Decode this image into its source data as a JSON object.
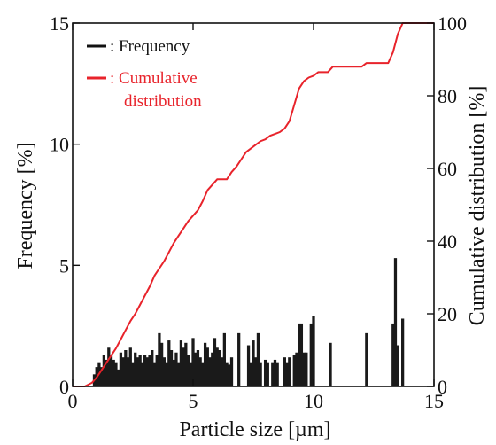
{
  "chart_data": {
    "type": "bar",
    "xlabel": "Particle size [µm]",
    "ylabel": "Frequency  [%]",
    "y2label": "Cumulative distribution [%]",
    "xlim": [
      0,
      15
    ],
    "ylim": [
      0,
      15
    ],
    "y2lim": [
      0,
      100
    ],
    "xticks": [
      "0",
      "5",
      "10",
      "15"
    ],
    "yticks": [
      "0",
      "5",
      "10",
      "15"
    ],
    "y2ticks": [
      "0",
      "20",
      "40",
      "60",
      "80",
      "100"
    ],
    "legend_position": "top-left",
    "series": [
      {
        "name": ": Frequency",
        "type": "bar",
        "color": "#1a1a1a",
        "bar_width": 0.12,
        "x": [
          0.9,
          1.0,
          1.1,
          1.2,
          1.3,
          1.4,
          1.5,
          1.6,
          1.7,
          1.8,
          1.9,
          2.0,
          2.1,
          2.2,
          2.3,
          2.4,
          2.5,
          2.6,
          2.7,
          2.8,
          2.9,
          3.0,
          3.1,
          3.2,
          3.3,
          3.4,
          3.5,
          3.6,
          3.7,
          3.8,
          3.9,
          4.0,
          4.1,
          4.2,
          4.3,
          4.4,
          4.5,
          4.6,
          4.7,
          4.8,
          4.9,
          5.0,
          5.1,
          5.2,
          5.3,
          5.4,
          5.5,
          5.6,
          5.7,
          5.8,
          5.9,
          6.0,
          6.1,
          6.2,
          6.3,
          6.4,
          6.5,
          6.6,
          6.9,
          7.3,
          7.4,
          7.5,
          7.6,
          7.7,
          7.8,
          8.0,
          8.1,
          8.3,
          8.4,
          8.5,
          8.8,
          8.9,
          9.0,
          9.2,
          9.3,
          9.4,
          9.5,
          9.6,
          9.7,
          9.9,
          10.0,
          10.7,
          12.2,
          13.3,
          13.4,
          13.5,
          13.7
        ],
        "values": [
          0.5,
          0.8,
          1.0,
          0.8,
          1.3,
          1.1,
          1.6,
          1.3,
          1.1,
          1.0,
          0.7,
          1.4,
          1.2,
          1.5,
          1.2,
          1.6,
          1.0,
          1.4,
          1.2,
          1.3,
          1.0,
          1.3,
          1.2,
          1.3,
          1.5,
          1.0,
          1.3,
          2.2,
          1.8,
          1.2,
          1.0,
          1.9,
          1.5,
          1.1,
          1.4,
          1.0,
          1.9,
          1.6,
          1.8,
          1.3,
          1.0,
          2.0,
          1.4,
          1.5,
          1.2,
          1.0,
          1.8,
          1.6,
          1.2,
          1.4,
          2.0,
          1.6,
          1.5,
          1.2,
          2.2,
          1.0,
          0.9,
          1.2,
          2.2,
          1.7,
          1.0,
          1.9,
          1.2,
          2.2,
          1.0,
          1.1,
          1.0,
          1.0,
          1.1,
          1.0,
          1.2,
          1.0,
          1.2,
          1.3,
          1.4,
          2.6,
          2.6,
          1.4,
          1.4,
          2.6,
          2.9,
          1.8,
          2.2,
          2.6,
          5.3,
          1.7,
          2.8
        ]
      },
      {
        "name": ": Cumulative",
        "name_line2": "distribution",
        "type": "line",
        "axis": "right",
        "color": "#e8232b",
        "x": [
          0.0,
          0.5,
          0.8,
          1.0,
          1.2,
          1.4,
          1.6,
          1.8,
          2.0,
          2.2,
          2.4,
          2.6,
          2.8,
          3.0,
          3.2,
          3.4,
          3.6,
          3.8,
          4.0,
          4.2,
          4.4,
          4.6,
          4.8,
          5.0,
          5.2,
          5.4,
          5.6,
          5.8,
          6.0,
          6.2,
          6.4,
          6.6,
          6.8,
          7.0,
          7.2,
          7.4,
          7.6,
          7.8,
          8.0,
          8.2,
          8.4,
          8.6,
          8.8,
          9.0,
          9.2,
          9.4,
          9.6,
          9.8,
          10.0,
          10.2,
          10.6,
          10.8,
          12.0,
          12.2,
          13.1,
          13.3,
          13.5,
          13.7,
          15.0
        ],
        "values": [
          0.0,
          0.0,
          1.0,
          2.5,
          4.5,
          6.5,
          8.5,
          10.5,
          13.0,
          15.5,
          18.0,
          20.0,
          22.5,
          25.0,
          27.5,
          30.5,
          32.5,
          34.5,
          37.0,
          39.5,
          41.5,
          43.5,
          45.5,
          47.0,
          48.5,
          51.0,
          54.0,
          55.5,
          57.0,
          57.0,
          57.0,
          59.0,
          60.5,
          62.5,
          64.5,
          65.5,
          66.5,
          67.5,
          68.0,
          69.0,
          69.5,
          70.0,
          71.0,
          73.0,
          77.5,
          82.0,
          84.0,
          85.0,
          85.5,
          86.5,
          86.5,
          88.0,
          88.0,
          89.0,
          89.0,
          92.0,
          97.0,
          100.0,
          100.0
        ]
      }
    ]
  }
}
